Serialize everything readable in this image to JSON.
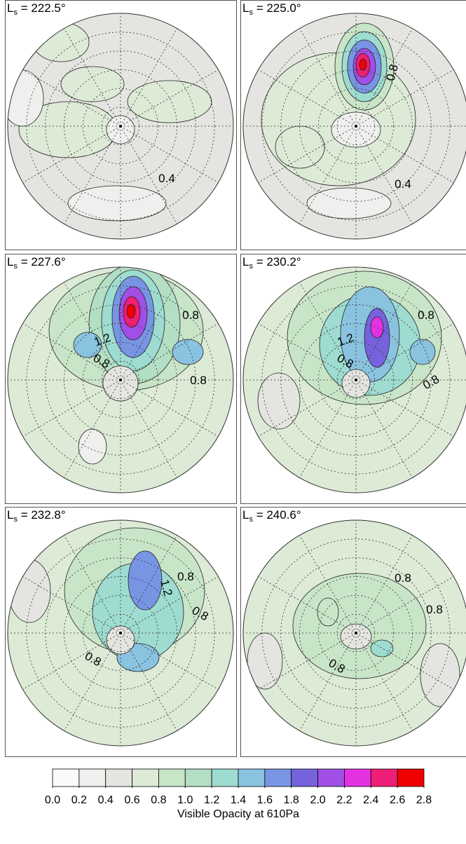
{
  "chart_data": [
    {
      "type": "contour",
      "title": {
        "symbol": "L",
        "subscript": "s",
        "text": " = 222.5°"
      },
      "contour_labels": [
        0.4
      ]
    },
    {
      "type": "contour",
      "title": {
        "symbol": "L",
        "subscript": "s",
        "text": " = 225.0°"
      },
      "contour_labels": [
        0.8,
        0.4
      ]
    },
    {
      "type": "contour",
      "title": {
        "symbol": "L",
        "subscript": "s",
        "text": " = 227.6°"
      },
      "contour_labels": [
        0.8,
        1.2,
        0.8,
        0.8
      ]
    },
    {
      "type": "contour",
      "title": {
        "symbol": "L",
        "subscript": "s",
        "text": " = 230.2°"
      },
      "contour_labels": [
        0.8,
        1.2,
        0.8,
        0.8
      ]
    },
    {
      "type": "contour",
      "title": {
        "symbol": "L",
        "subscript": "s",
        "text": " = 232.8°"
      },
      "contour_labels": [
        1.2,
        0.8,
        0.8,
        0.8
      ]
    },
    {
      "type": "contour",
      "title": {
        "symbol": "L",
        "subscript": "s",
        "text": " = 240.6°"
      },
      "contour_labels": [
        0.8,
        0.8,
        0.8
      ]
    }
  ],
  "colorbar": {
    "ticks": [
      {
        "value": 0,
        "label": "0.0"
      },
      0.2,
      0.4,
      0.6,
      0.8,
      {
        "value": 1,
        "label": "1.0"
      },
      1.2,
      1.4,
      1.6,
      1.8,
      {
        "value": 2,
        "label": "2.0"
      },
      2.2,
      2.4,
      2.6,
      2.8
    ],
    "colors": [
      "#fafafa",
      "#efefed",
      "#e4e4e0",
      "#dcead6",
      "#c9e5c8",
      "#b3dfc4",
      "#9edbd0",
      "#8ac3e0",
      "#7895e4",
      "#7662dc",
      "#a14fe6",
      "#e432e2",
      "#ef1e76",
      "#f00000"
    ],
    "label": "Visible Opacity at 610Pa"
  }
}
